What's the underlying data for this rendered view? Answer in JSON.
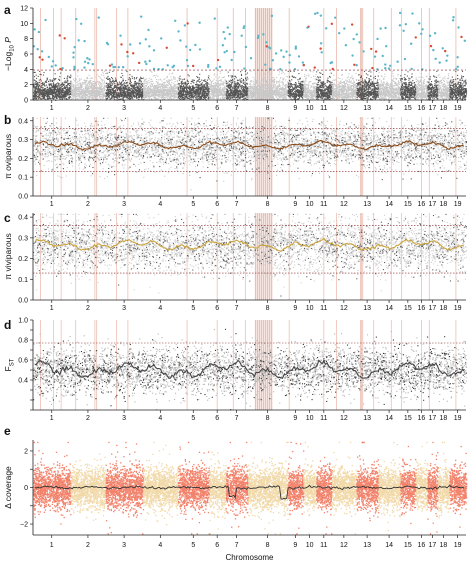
{
  "figure": {
    "chromosomes": [
      "1",
      "2",
      "3",
      "4",
      "5",
      "6",
      "7",
      "8",
      "9",
      "10",
      "11",
      "12",
      "13",
      "14",
      "15",
      "16",
      "17",
      "18",
      "19"
    ],
    "chromosome_relative_sizes": [
      1.45,
      1.35,
      1.45,
      1.35,
      1.2,
      0.65,
      0.85,
      1.55,
      0.6,
      0.5,
      0.6,
      0.95,
      0.85,
      0.85,
      0.6,
      0.45,
      0.4,
      0.45,
      0.65
    ],
    "x_axis_label": "Chromosome",
    "colors": {
      "manhattan_dark": "#555555",
      "manhattan_light": "#c8c8c8",
      "manhattan_hit": "#5bb6c9",
      "manhattan_hit_red": "#d94b34",
      "oviparous_line": "#8a4a18",
      "viviparous_line": "#c9a33b",
      "fst_dark": "#333333",
      "fst_light": "#b5b5b5",
      "coverage_dark": "#f2826b",
      "coverage_light": "#f1d9a9",
      "highlight_band": "#d9826a",
      "threshold_line": "#8a2a2a"
    }
  },
  "panels": {
    "a": {
      "label": "a"
    },
    "b": {
      "label": "b"
    },
    "c": {
      "label": "c"
    },
    "d": {
      "label": "d"
    },
    "e": {
      "label": "e"
    }
  },
  "chart_data": [
    {
      "id": "a",
      "type": "scatter",
      "ylabel": "−Log10 P",
      "ylim": [
        0,
        12
      ],
      "yticks": [
        0,
        2,
        4,
        6,
        8,
        10,
        12
      ],
      "threshold": 3.9,
      "grid": false
    },
    {
      "id": "b",
      "type": "scatter",
      "ylabel": "π oviparous",
      "ylim": [
        0,
        0.42
      ],
      "yticks": [
        0,
        0.1,
        0.2,
        0.3,
        0.4
      ],
      "ytick_labels": [
        "0.0",
        "0.1",
        "0.2",
        "0.3",
        "0.4"
      ],
      "mean_line": 0.27,
      "thresholds": [
        0.13,
        0.36
      ],
      "grid": false
    },
    {
      "id": "c",
      "type": "scatter",
      "ylabel": "π viviparous",
      "ylim": [
        0,
        0.42
      ],
      "yticks": [
        0,
        0.1,
        0.2,
        0.3,
        0.4
      ],
      "ytick_labels": [
        "0.0",
        "0.1",
        "0.2",
        "0.3",
        "0.4"
      ],
      "mean_line": 0.265,
      "thresholds": [
        0.13,
        0.36
      ],
      "grid": false
    },
    {
      "id": "d",
      "type": "scatter",
      "ylabel": "FST",
      "ylim": [
        0.1,
        1.0
      ],
      "yticks": [
        0.1,
        0.2,
        0.3,
        0.4,
        0.5,
        0.6,
        0.7,
        0.8,
        0.9,
        1.0
      ],
      "ytick_labels": [
        "",
        "",
        "",
        "0.4",
        "",
        "0.6",
        "",
        "0.8",
        "",
        "1.0"
      ],
      "mean_line": 0.5,
      "thresholds": [
        0.77
      ],
      "grid": false
    },
    {
      "id": "e",
      "type": "scatter",
      "ylabel": "Δ coverage",
      "ylim": [
        -2.6,
        2.6
      ],
      "yticks": [
        -2,
        -1,
        0,
        1,
        2
      ],
      "ytick_labels": [
        "−2",
        "",
        "0",
        "",
        "2"
      ],
      "mean_line": 0,
      "grid": false
    }
  ]
}
